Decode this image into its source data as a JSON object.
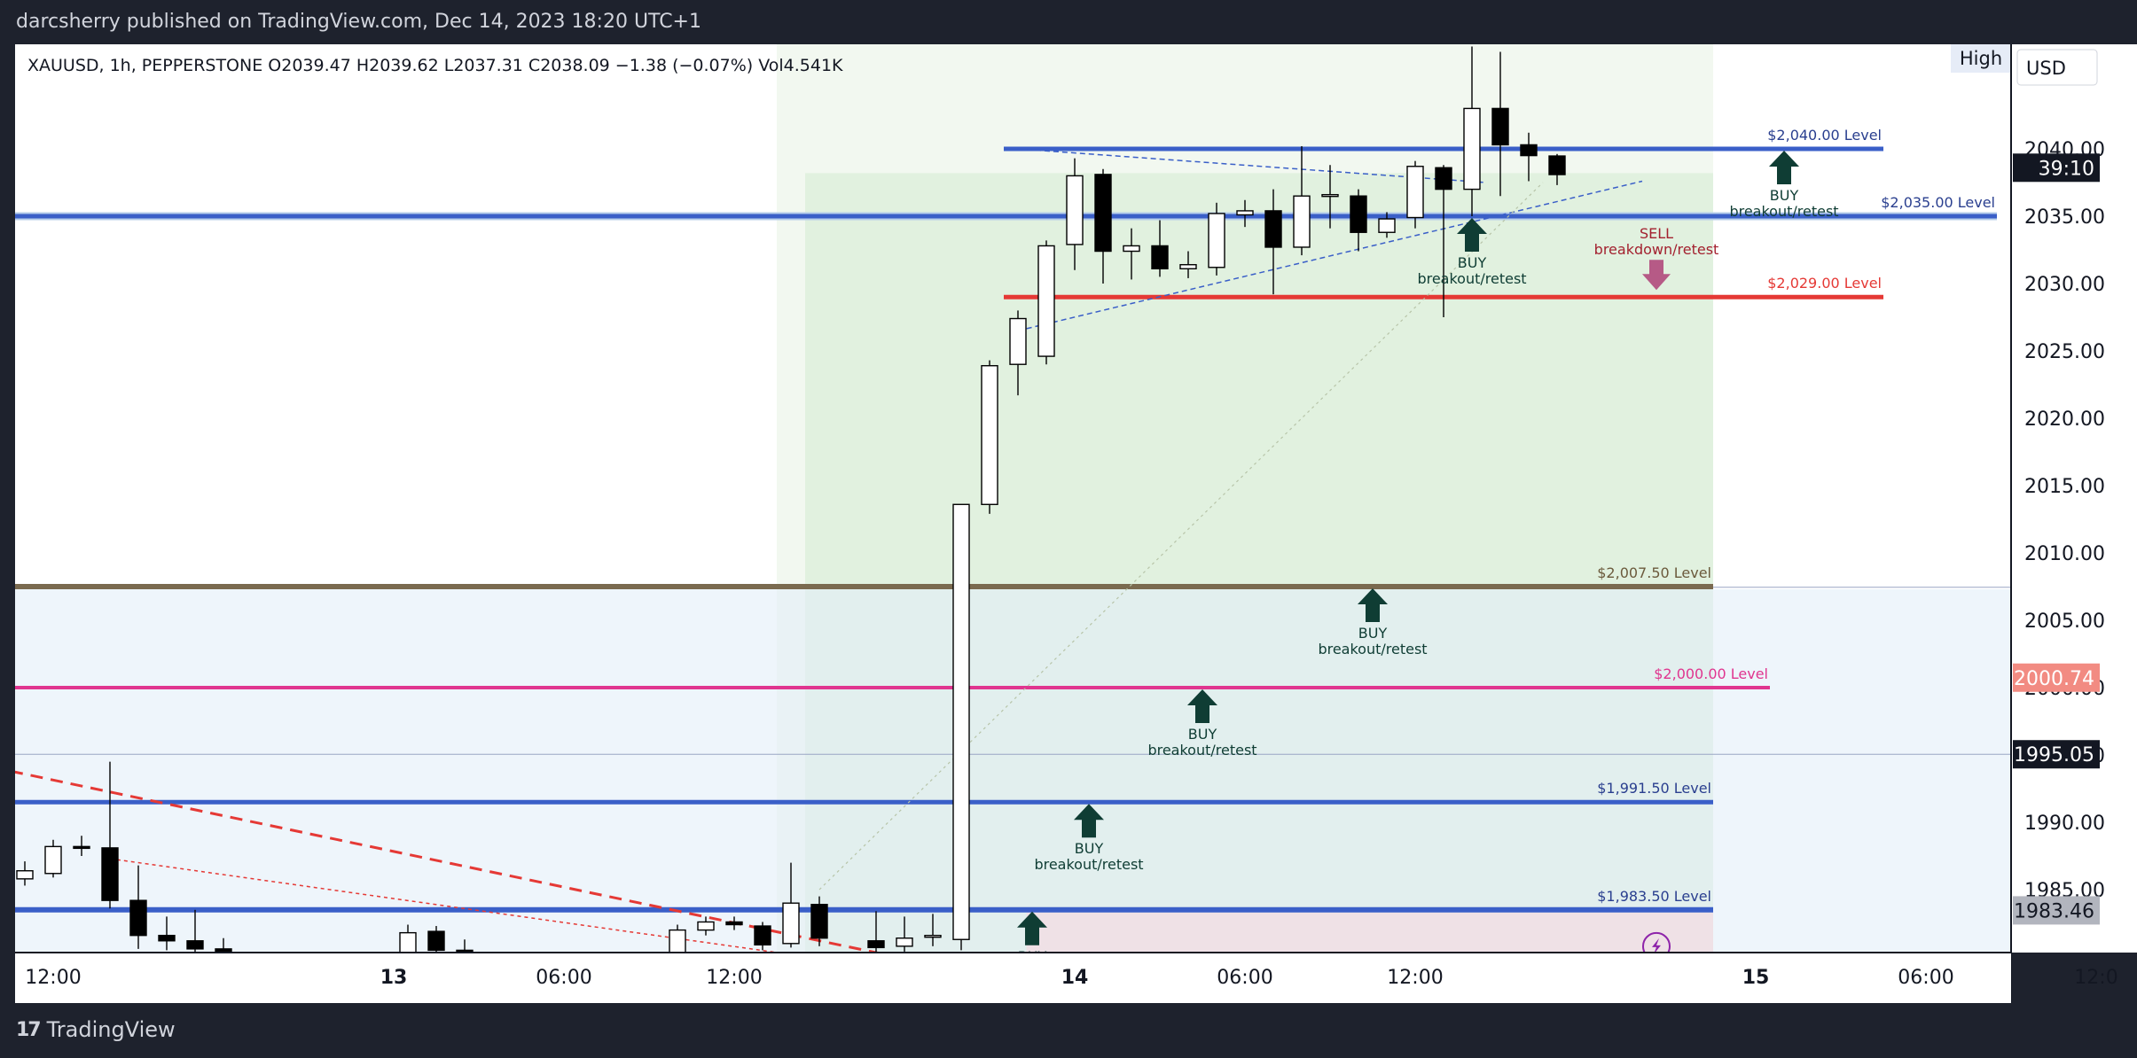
{
  "header": {
    "publish_line": "darcsherry published on TradingView.com, Dec 14, 2023 18:20 UTC+1"
  },
  "footer": {
    "brand": "TradingView",
    "brand_icon": "tradingview-logo-icon"
  },
  "colors": {
    "background": "#1e222d",
    "up": "#ffffff",
    "down": "#000000",
    "blue_level": "#3a5fc8",
    "red_level": "#e53935",
    "brown_level": "#7a6a4f",
    "pink_level": "#e0358f"
  },
  "chart_data": {
    "type": "candlestick",
    "symbol_line": {
      "text": "XAUUSD, 1h, PEPPERSTONE  O2039.47  H2039.62  L2037.31  C2038.09  −1.38 (−0.07%)  Vol4.541K",
      "symbol": "XAUUSD",
      "interval": "1h",
      "exchange": "PEPPERSTONE",
      "open": 2039.47,
      "high": 2039.62,
      "low": 2037.31,
      "close": 2038.09,
      "change": -1.38,
      "change_pct": -0.07,
      "volume": "4.541K"
    },
    "currency": "USD",
    "price_mode": "High",
    "y_axis": {
      "min": 1980.0,
      "max": 2044.0,
      "ticks": [
        1985,
        1990,
        1995,
        2000,
        2005,
        2010,
        2015,
        2020,
        2025,
        2030,
        2035,
        2040
      ],
      "tick_labels": [
        "1985.00",
        "1990.00",
        "1995.00",
        "2000.00",
        "2005.00",
        "2010.00",
        "2015.00",
        "2020.00",
        "2025.00",
        "2030.00",
        "2035.00",
        "2040.00"
      ]
    },
    "x_axis": {
      "ticks": [
        {
          "label": "12:00",
          "hour": 0
        },
        {
          "label": "13",
          "hour": 12
        },
        {
          "label": "06:00",
          "hour": 18
        },
        {
          "label": "12:00",
          "hour": 24
        },
        {
          "label": "14",
          "hour": 36
        },
        {
          "label": "06:00",
          "hour": 42
        },
        {
          "label": "12:00",
          "hour": 48
        },
        {
          "label": "15",
          "hour": 60
        },
        {
          "label": "06:00",
          "hour": 66
        },
        {
          "label": "12:0",
          "hour": 72
        }
      ]
    },
    "candles": [
      {
        "h": -1.0,
        "o": 1985.8,
        "c": 1986.4,
        "hi": 1987.1,
        "lo": 1985.3
      },
      {
        "h": 0.0,
        "o": 1986.2,
        "c": 1988.2,
        "hi": 1988.7,
        "lo": 1985.9
      },
      {
        "h": 1.0,
        "o": 1988.2,
        "c": 1988.1,
        "hi": 1989.0,
        "lo": 1987.5
      },
      {
        "h": 2.0,
        "o": 1988.1,
        "c": 1984.2,
        "hi": 1994.5,
        "lo": 1983.6
      },
      {
        "h": 3.0,
        "o": 1984.2,
        "c": 1981.6,
        "hi": 1986.8,
        "lo": 1980.6
      },
      {
        "h": 4.0,
        "o": 1981.6,
        "c": 1981.2,
        "hi": 1983.0,
        "lo": 1980.5
      },
      {
        "h": 5.0,
        "o": 1981.2,
        "c": 1980.6,
        "hi": 1983.5,
        "lo": 1980.0
      },
      {
        "h": 6.0,
        "o": 1980.6,
        "c": 1980.1,
        "hi": 1981.4,
        "lo": 1979.5
      },
      {
        "h": 12.5,
        "o": 1980.3,
        "c": 1981.8,
        "hi": 1982.4,
        "lo": 1980.0
      },
      {
        "h": 13.5,
        "o": 1981.9,
        "c": 1980.5,
        "hi": 1982.3,
        "lo": 1980.1
      },
      {
        "h": 14.5,
        "o": 1980.5,
        "c": 1980.1,
        "hi": 1981.3,
        "lo": 1979.8
      },
      {
        "h": 22.0,
        "o": 1980.1,
        "c": 1982.0,
        "hi": 1982.4,
        "lo": 1979.6
      },
      {
        "h": 23.0,
        "o": 1982.0,
        "c": 1982.6,
        "hi": 1983.0,
        "lo": 1981.6
      },
      {
        "h": 24.0,
        "o": 1982.6,
        "c": 1982.4,
        "hi": 1983.0,
        "lo": 1982.0
      },
      {
        "h": 25.0,
        "o": 1982.3,
        "c": 1980.9,
        "hi": 1982.6,
        "lo": 1980.5
      },
      {
        "h": 26.0,
        "o": 1981.0,
        "c": 1984.0,
        "hi": 1987.0,
        "lo": 1980.7
      },
      {
        "h": 27.0,
        "o": 1983.9,
        "c": 1981.4,
        "hi": 1984.5,
        "lo": 1980.8
      },
      {
        "h": 29.0,
        "o": 1981.2,
        "c": 1980.7,
        "hi": 1983.4,
        "lo": 1980.0
      },
      {
        "h": 30.0,
        "o": 1980.8,
        "c": 1981.4,
        "hi": 1983.0,
        "lo": 1980.4
      },
      {
        "h": 31.0,
        "o": 1981.5,
        "c": 1981.6,
        "hi": 1983.2,
        "lo": 1980.8
      },
      {
        "h": 32.0,
        "o": 1981.3,
        "c": 2013.6,
        "hi": 2013.6,
        "lo": 1980.5
      },
      {
        "h": 33.0,
        "o": 2013.6,
        "c": 2023.9,
        "hi": 2024.3,
        "lo": 2012.9
      },
      {
        "h": 34.0,
        "o": 2024.0,
        "c": 2027.4,
        "hi": 2028.0,
        "lo": 2021.7
      },
      {
        "h": 35.0,
        "o": 2024.6,
        "c": 2032.8,
        "hi": 2033.2,
        "lo": 2024.0
      },
      {
        "h": 36.0,
        "o": 2032.9,
        "c": 2038.0,
        "hi": 2039.3,
        "lo": 2031.0
      },
      {
        "h": 37.0,
        "o": 2038.1,
        "c": 2032.4,
        "hi": 2038.5,
        "lo": 2030.0
      },
      {
        "h": 38.0,
        "o": 2032.4,
        "c": 2032.8,
        "hi": 2034.1,
        "lo": 2030.3
      },
      {
        "h": 39.0,
        "o": 2032.8,
        "c": 2031.1,
        "hi": 2034.7,
        "lo": 2030.5
      },
      {
        "h": 40.0,
        "o": 2031.1,
        "c": 2031.4,
        "hi": 2032.4,
        "lo": 2030.4
      },
      {
        "h": 41.0,
        "o": 2031.2,
        "c": 2035.2,
        "hi": 2036.0,
        "lo": 2030.6
      },
      {
        "h": 42.0,
        "o": 2035.1,
        "c": 2035.4,
        "hi": 2036.2,
        "lo": 2034.2
      },
      {
        "h": 43.0,
        "o": 2035.4,
        "c": 2032.7,
        "hi": 2037.0,
        "lo": 2029.2
      },
      {
        "h": 44.0,
        "o": 2032.7,
        "c": 2036.5,
        "hi": 2040.2,
        "lo": 2032.1
      },
      {
        "h": 45.0,
        "o": 2036.5,
        "c": 2036.6,
        "hi": 2038.8,
        "lo": 2034.1
      },
      {
        "h": 46.0,
        "o": 2036.5,
        "c": 2033.8,
        "hi": 2037.0,
        "lo": 2032.4
      },
      {
        "h": 47.0,
        "o": 2033.8,
        "c": 2034.8,
        "hi": 2035.3,
        "lo": 2033.4
      },
      {
        "h": 48.0,
        "o": 2034.9,
        "c": 2038.7,
        "hi": 2039.1,
        "lo": 2034.1
      },
      {
        "h": 49.0,
        "o": 2038.6,
        "c": 2037.0,
        "hi": 2038.8,
        "lo": 2027.5
      },
      {
        "h": 50.0,
        "o": 2037.0,
        "c": 2043.0,
        "hi": 2047.6,
        "lo": 2035.0
      },
      {
        "h": 51.0,
        "o": 2043.0,
        "c": 2040.3,
        "hi": 2047.2,
        "lo": 2036.5
      },
      {
        "h": 52.0,
        "o": 2040.3,
        "c": 2039.5,
        "hi": 2041.2,
        "lo": 2037.6
      },
      {
        "h": 53.0,
        "o": 2039.47,
        "c": 2038.09,
        "hi": 2039.62,
        "lo": 2037.31
      }
    ],
    "levels": [
      {
        "price": 2040.0,
        "label": "$2,040.00 Level",
        "color": "#3a5fc8",
        "from_h": 33.5,
        "to_h": 64.5,
        "width": 5
      },
      {
        "price": 2035.0,
        "label": "$2,035.00 Level",
        "color": "#3a5fc8",
        "from_h": -1.5,
        "to_h": 68.5,
        "width": 5,
        "halo": true
      },
      {
        "price": 2029.0,
        "label": "$2,029.00 Level",
        "color": "#e53935",
        "from_h": 33.5,
        "to_h": 64.5,
        "width": 5
      },
      {
        "price": 2007.5,
        "label": "$2,007.50 Level",
        "color": "#7a6a4f",
        "from_h": -1.5,
        "to_h": 58.5,
        "width": 6
      },
      {
        "price": 2000.0,
        "label": "$2,000.00 Level",
        "color": "#e0358f",
        "from_h": -1.5,
        "to_h": 60.5,
        "width": 4
      },
      {
        "price": 1991.5,
        "label": "$1,991.50 Level",
        "color": "#3a5fc8",
        "from_h": -1.5,
        "to_h": 58.5,
        "width": 5
      },
      {
        "price": 1983.5,
        "label": "$1,983.50 Level",
        "color": "#3a5fc8",
        "from_h": -1.5,
        "to_h": 58.5,
        "width": 6
      }
    ],
    "signals": [
      {
        "side": "BUY",
        "sub": "breakout/retest",
        "h": 61.0,
        "price": 2040.0
      },
      {
        "side": "BUY",
        "sub": "breakout/retest",
        "h": 50.0,
        "price": 2035.0
      },
      {
        "side": "SELL",
        "sub": "breakdown/retest",
        "h": 56.5,
        "price": 2029.0
      },
      {
        "side": "BUY",
        "sub": "breakout/retest",
        "h": 46.5,
        "price": 2007.5
      },
      {
        "side": "BUY",
        "sub": "breakout/retest",
        "h": 40.5,
        "price": 2000.0
      },
      {
        "side": "BUY",
        "sub": "breakout/retest",
        "h": 36.5,
        "price": 1991.5
      },
      {
        "side": "BUY",
        "sub": "",
        "h": 34.5,
        "price": 1983.5
      }
    ],
    "price_tags": [
      {
        "price": 2038.6,
        "text": "39:10",
        "bg": "#131722",
        "fg": "#ffffff"
      },
      {
        "price": 2000.74,
        "text": "2000.74",
        "bg": "#f28b82",
        "fg": "#ffffff"
      },
      {
        "price": 1995.05,
        "text": "1995.05",
        "bg": "#131722",
        "fg": "#ffffff"
      },
      {
        "price": 1983.46,
        "text": "1983.46",
        "bg": "#b2b5be",
        "fg": "#131722"
      }
    ]
  }
}
